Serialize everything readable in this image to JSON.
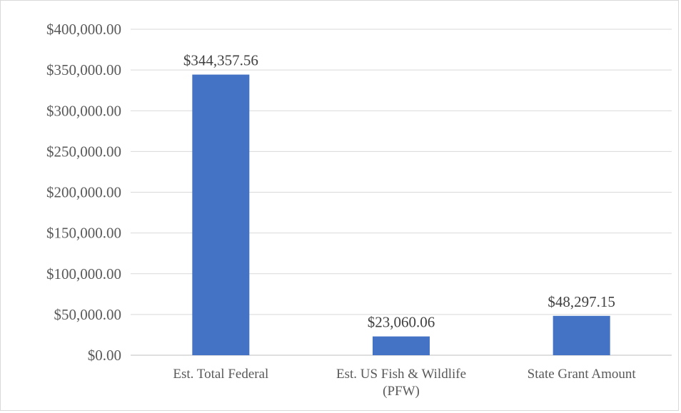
{
  "chart_data": {
    "type": "bar",
    "categories": [
      [
        "Est. Total Federal"
      ],
      [
        "Est. US Fish & Wildlife",
        "(PFW)"
      ],
      [
        "State Grant Amount"
      ]
    ],
    "values": [
      344357.56,
      23060.06,
      48297.15
    ],
    "data_labels": [
      "$344,357.56",
      "$23,060.06",
      "$48,297.15"
    ],
    "title": "",
    "xlabel": "",
    "ylabel": "",
    "ylim": [
      0,
      400000
    ],
    "yticks": [
      0,
      50000,
      100000,
      150000,
      200000,
      250000,
      300000,
      350000,
      400000
    ],
    "ytick_labels": [
      "$0.00",
      "$50,000.00",
      "$100,000.00",
      "$150,000.00",
      "$200,000.00",
      "$250,000.00",
      "$300,000.00",
      "$350,000.00",
      "$400,000.00"
    ],
    "grid": true,
    "legend": false,
    "colors": {
      "bar": "#4472c4",
      "grid": "#d9d9d9",
      "axis": "#bfbfbf"
    }
  }
}
